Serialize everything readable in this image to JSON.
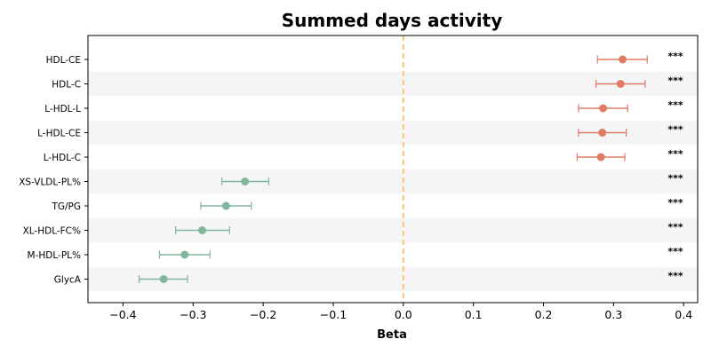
{
  "chart_data": {
    "type": "forest",
    "title": "Summed days activity",
    "xlabel": "Beta",
    "xlim": [
      -0.45,
      0.42
    ],
    "xticks": [
      -0.4,
      -0.3,
      -0.2,
      -0.1,
      0.0,
      0.1,
      0.2,
      0.3,
      0.4
    ],
    "xtick_labels": [
      "−0.4",
      "−0.3",
      "−0.2",
      "−0.1",
      "0.0",
      "0.1",
      "0.2",
      "0.3",
      "0.4"
    ],
    "reference_line": 0.0,
    "colors": {
      "positive": "#e07b65",
      "negative": "#80b69b",
      "reference": "#f5c98a",
      "band": "#f5f5f5"
    },
    "rows": [
      {
        "label": "HDL-CE",
        "beta": 0.313,
        "ci_low": 0.277,
        "ci_high": 0.348,
        "sig": "***"
      },
      {
        "label": "HDL-C",
        "beta": 0.31,
        "ci_low": 0.275,
        "ci_high": 0.345,
        "sig": "***"
      },
      {
        "label": "L-HDL-L",
        "beta": 0.285,
        "ci_low": 0.25,
        "ci_high": 0.32,
        "sig": "***"
      },
      {
        "label": "L-HDL-CE",
        "beta": 0.284,
        "ci_low": 0.25,
        "ci_high": 0.318,
        "sig": "***"
      },
      {
        "label": "L-HDL-C",
        "beta": 0.282,
        "ci_low": 0.248,
        "ci_high": 0.316,
        "sig": "***"
      },
      {
        "label": "XS-VLDL-PL%",
        "beta": -0.226,
        "ci_low": -0.259,
        "ci_high": -0.192,
        "sig": "***"
      },
      {
        "label": "TG/PG",
        "beta": -0.253,
        "ci_low": -0.289,
        "ci_high": -0.217,
        "sig": "***"
      },
      {
        "label": "XL-HDL-FC%",
        "beta": -0.287,
        "ci_low": -0.325,
        "ci_high": -0.248,
        "sig": "***"
      },
      {
        "label": "M-HDL-PL%",
        "beta": -0.312,
        "ci_low": -0.348,
        "ci_high": -0.276,
        "sig": "***"
      },
      {
        "label": "GlycA",
        "beta": -0.342,
        "ci_low": -0.377,
        "ci_high": -0.308,
        "sig": "***"
      }
    ]
  }
}
